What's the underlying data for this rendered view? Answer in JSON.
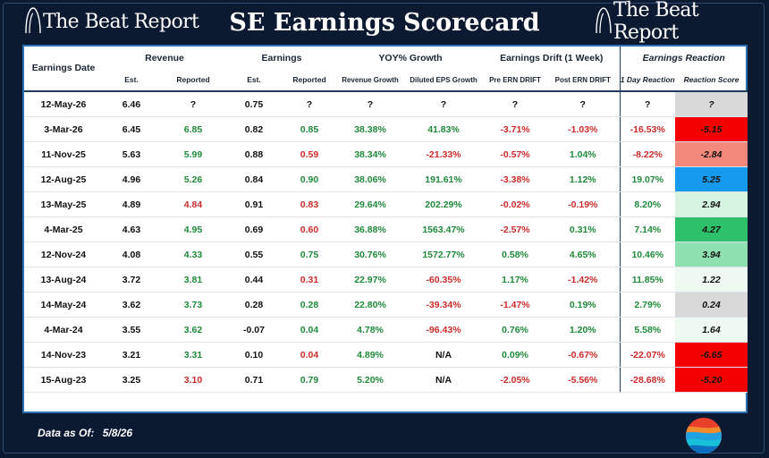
{
  "brand": {
    "name": "The Beat Report"
  },
  "title": "SE Earnings Scorecard",
  "headers": {
    "date": "Earnings Date",
    "revenue": "Revenue",
    "earnings": "Earnings",
    "yoy": "YOY% Growth",
    "drift": "Earnings Drift (1 Week)",
    "reaction": "Earnings Reaction",
    "sub": {
      "rev_est": "Est.",
      "rev_rep": "Reported",
      "earn_est": "Est.",
      "earn_rep": "Reported",
      "rev_growth": "Revenue Growth",
      "eps_growth": "Diluted EPS Growth",
      "pre_drift": "Pre ERN DRIFT",
      "post_drift": "Post ERN DRIFT",
      "day1": "1 Day Reaction",
      "score": "Reaction Score"
    }
  },
  "rows": [
    {
      "date": "12-May-26",
      "rev_est": "6.46",
      "rev_rep": "?",
      "rev_rep_c": "neu",
      "earn_est": "0.75",
      "earn_rep": "?",
      "earn_rep_c": "neu",
      "rev_growth": "?",
      "rev_growth_c": "neu",
      "eps_growth": "?",
      "eps_growth_c": "neu",
      "pre": "?",
      "pre_c": "neu",
      "post": "?",
      "post_c": "neu",
      "day1": "?",
      "day1_c": "neu",
      "score": "?",
      "score_bg": "#d9d9d9"
    },
    {
      "date": "3-Mar-26",
      "rev_est": "6.45",
      "rev_rep": "6.85",
      "rev_rep_c": "pos",
      "earn_est": "0.82",
      "earn_rep": "0.85",
      "earn_rep_c": "pos",
      "rev_growth": "38.38%",
      "rev_growth_c": "pos",
      "eps_growth": "41.83%",
      "eps_growth_c": "pos",
      "pre": "-3.71%",
      "pre_c": "neg",
      "post": "-1.03%",
      "post_c": "neg",
      "day1": "-16.53%",
      "day1_c": "neg",
      "score": "-5.15",
      "score_bg": "#f40000"
    },
    {
      "date": "11-Nov-25",
      "rev_est": "5.63",
      "rev_rep": "5.99",
      "rev_rep_c": "pos",
      "earn_est": "0.88",
      "earn_rep": "0.59",
      "earn_rep_c": "neg",
      "rev_growth": "38.34%",
      "rev_growth_c": "pos",
      "eps_growth": "-21.33%",
      "eps_growth_c": "neg",
      "pre": "-0.57%",
      "pre_c": "neg",
      "post": "1.04%",
      "post_c": "pos",
      "day1": "-8.22%",
      "day1_c": "neg",
      "score": "-2.84",
      "score_bg": "#f3897d"
    },
    {
      "date": "12-Aug-25",
      "rev_est": "4.96",
      "rev_rep": "5.26",
      "rev_rep_c": "pos",
      "earn_est": "0.84",
      "earn_rep": "0.90",
      "earn_rep_c": "pos",
      "rev_growth": "38.06%",
      "rev_growth_c": "pos",
      "eps_growth": "191.61%",
      "eps_growth_c": "pos",
      "pre": "-3.38%",
      "pre_c": "neg",
      "post": "1.12%",
      "post_c": "pos",
      "day1": "19.07%",
      "day1_c": "pos",
      "score": "5.25",
      "score_bg": "#159af0"
    },
    {
      "date": "13-May-25",
      "rev_est": "4.89",
      "rev_rep": "4.84",
      "rev_rep_c": "neg",
      "earn_est": "0.91",
      "earn_rep": "0.83",
      "earn_rep_c": "neg",
      "rev_growth": "29.64%",
      "rev_growth_c": "pos",
      "eps_growth": "202.29%",
      "eps_growth_c": "pos",
      "pre": "-0.02%",
      "pre_c": "neg",
      "post": "-0.19%",
      "post_c": "neg",
      "day1": "8.20%",
      "day1_c": "pos",
      "score": "2.94",
      "score_bg": "#d6f4df"
    },
    {
      "date": "4-Mar-25",
      "rev_est": "4.63",
      "rev_rep": "4.95",
      "rev_rep_c": "pos",
      "earn_est": "0.69",
      "earn_rep": "0.60",
      "earn_rep_c": "neg",
      "rev_growth": "36.88%",
      "rev_growth_c": "pos",
      "eps_growth": "1563.47%",
      "eps_growth_c": "pos",
      "pre": "-2.57%",
      "pre_c": "neg",
      "post": "0.31%",
      "post_c": "pos",
      "day1": "7.14%",
      "day1_c": "pos",
      "score": "4.27",
      "score_bg": "#2ec06a"
    },
    {
      "date": "12-Nov-24",
      "rev_est": "4.08",
      "rev_rep": "4.33",
      "rev_rep_c": "pos",
      "earn_est": "0.55",
      "earn_rep": "0.75",
      "earn_rep_c": "pos",
      "rev_growth": "30.76%",
      "rev_growth_c": "pos",
      "eps_growth": "1572.77%",
      "eps_growth_c": "pos",
      "pre": "0.58%",
      "pre_c": "pos",
      "post": "4.65%",
      "post_c": "pos",
      "day1": "10.46%",
      "day1_c": "pos",
      "score": "3.94",
      "score_bg": "#8fe0b0"
    },
    {
      "date": "13-Aug-24",
      "rev_est": "3.72",
      "rev_rep": "3.81",
      "rev_rep_c": "pos",
      "earn_est": "0.44",
      "earn_rep": "0.31",
      "earn_rep_c": "neg",
      "rev_growth": "22.97%",
      "rev_growth_c": "pos",
      "eps_growth": "-60.35%",
      "eps_growth_c": "neg",
      "pre": "1.17%",
      "pre_c": "pos",
      "post": "-1.42%",
      "post_c": "neg",
      "day1": "11.85%",
      "day1_c": "pos",
      "score": "1.22",
      "score_bg": "#eef9f1"
    },
    {
      "date": "14-May-24",
      "rev_est": "3.62",
      "rev_rep": "3.73",
      "rev_rep_c": "pos",
      "earn_est": "0.28",
      "earn_rep": "0.28",
      "earn_rep_c": "pos",
      "rev_growth": "22.80%",
      "rev_growth_c": "pos",
      "eps_growth": "-39.34%",
      "eps_growth_c": "neg",
      "pre": "-1.47%",
      "pre_c": "neg",
      "post": "0.19%",
      "post_c": "pos",
      "day1": "2.79%",
      "day1_c": "pos",
      "score": "0.24",
      "score_bg": "#d9d9d9"
    },
    {
      "date": "4-Mar-24",
      "rev_est": "3.55",
      "rev_rep": "3.62",
      "rev_rep_c": "pos",
      "earn_est": "-0.07",
      "earn_rep": "0.04",
      "earn_rep_c": "pos",
      "rev_growth": "4.78%",
      "rev_growth_c": "pos",
      "eps_growth": "-96.43%",
      "eps_growth_c": "neg",
      "pre": "0.76%",
      "pre_c": "pos",
      "post": "1.20%",
      "post_c": "pos",
      "day1": "5.58%",
      "day1_c": "pos",
      "score": "1.64",
      "score_bg": "#eef9f1"
    },
    {
      "date": "14-Nov-23",
      "rev_est": "3.21",
      "rev_rep": "3.31",
      "rev_rep_c": "pos",
      "earn_est": "0.10",
      "earn_rep": "0.04",
      "earn_rep_c": "neg",
      "rev_growth": "4.89%",
      "rev_growth_c": "pos",
      "eps_growth": "N/A",
      "eps_growth_c": "neu",
      "pre": "0.09%",
      "pre_c": "pos",
      "post": "-0.67%",
      "post_c": "neg",
      "day1": "-22.07%",
      "day1_c": "neg",
      "score": "-6.65",
      "score_bg": "#f40000"
    },
    {
      "date": "15-Aug-23",
      "rev_est": "3.25",
      "rev_rep": "3.10",
      "rev_rep_c": "neg",
      "earn_est": "0.71",
      "earn_rep": "0.79",
      "earn_rep_c": "pos",
      "rev_growth": "5.20%",
      "rev_growth_c": "pos",
      "eps_growth": "N/A",
      "eps_growth_c": "neu",
      "pre": "-2.05%",
      "pre_c": "neg",
      "post": "-5.56%",
      "post_c": "neg",
      "day1": "-28.68%",
      "day1_c": "neg",
      "score": "-5.20",
      "score_bg": "#f40000"
    }
  ],
  "footer": {
    "label": "Data as Of:",
    "date": "5/8/26"
  },
  "colors": {
    "positive": "#1f8a3a",
    "negative": "#cc2b2b",
    "background": "#0b1a30",
    "table_border": "#2a6fb0"
  },
  "icons": {
    "brand_logo": "waveform-circle-icon",
    "orb": "gradient-orb-logo-icon"
  }
}
